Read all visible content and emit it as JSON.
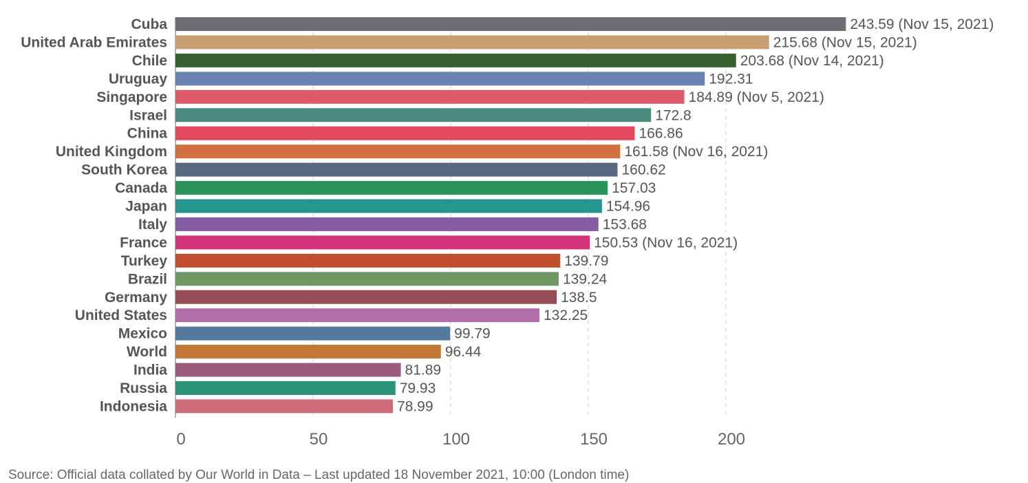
{
  "chart_data": {
    "type": "bar",
    "orientation": "horizontal",
    "categories": [
      "Cuba",
      "United Arab Emirates",
      "Chile",
      "Uruguay",
      "Singapore",
      "Israel",
      "China",
      "United Kingdom",
      "South Korea",
      "Canada",
      "Japan",
      "Italy",
      "France",
      "Turkey",
      "Brazil",
      "Germany",
      "United States",
      "Mexico",
      "World",
      "India",
      "Russia",
      "Indonesia"
    ],
    "values": [
      243.59,
      215.68,
      203.68,
      192.31,
      184.89,
      172.8,
      166.86,
      161.58,
      160.62,
      157.03,
      154.96,
      153.68,
      150.53,
      139.79,
      139.24,
      138.5,
      132.25,
      99.79,
      96.44,
      81.89,
      79.93,
      78.99
    ],
    "value_labels": [
      "243.59 (Nov 15, 2021)",
      "215.68 (Nov 15, 2021)",
      "203.68 (Nov 14, 2021)",
      "192.31",
      "184.89 (Nov 5, 2021)",
      "172.8",
      "166.86",
      "161.58 (Nov 16, 2021)",
      "160.62",
      "157.03",
      "154.96",
      "153.68",
      "150.53 (Nov 16, 2021)",
      "139.79",
      "139.24",
      "138.5",
      "132.25",
      "99.79",
      "96.44",
      "81.89",
      "79.93",
      "78.99"
    ],
    "colors": [
      "#6d6e72",
      "#c9a073",
      "#35602f",
      "#6a83b0",
      "#de5a6a",
      "#4b8a7e",
      "#e0485b",
      "#d27140",
      "#5a6880",
      "#2b935a",
      "#26958f",
      "#835ca2",
      "#d63278",
      "#bf4f2f",
      "#709663",
      "#954e55",
      "#b16fa8",
      "#55799c",
      "#c17837",
      "#9b5c7a",
      "#2a9576",
      "#cf6c7b"
    ],
    "xticks": [
      0,
      50,
      100,
      150,
      200
    ],
    "xlim": [
      0,
      250
    ],
    "grid": true,
    "title": "",
    "xlabel": "",
    "ylabel": ""
  },
  "footer": {
    "source": "Source: Official data collated by Our World in Data – Last updated 18 November 2021, 10:00 (London time)"
  }
}
